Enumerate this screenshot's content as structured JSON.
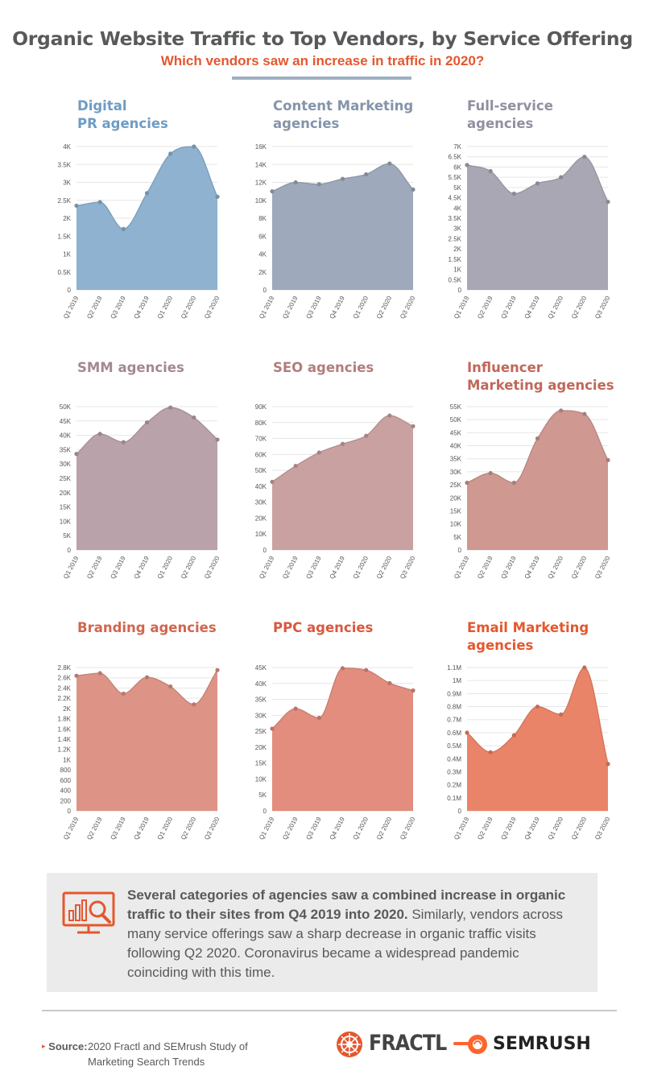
{
  "header": {
    "title": "Organic Website Traffic to Top Vendors, by Service Offering",
    "subtitle": "Which vendors saw an increase in traffic in 2020?"
  },
  "colors": {
    "accent": "#e4572e",
    "title_gray": "#58595b",
    "rule_blue": "#9fb0c2",
    "callout_bg": "#ebebeb"
  },
  "chart_data": [
    {
      "type": "area",
      "title": "Digital\nPR agencies",
      "color": "#8eb2cf",
      "title_color": "#6e9cc4",
      "categories": [
        "Q1 2019",
        "Q2 2019",
        "Q3 2019",
        "Q4 2019",
        "Q1 2020",
        "Q2 2020",
        "Q3 2020"
      ],
      "values": [
        2350,
        2450,
        1700,
        2700,
        3800,
        4000,
        2600
      ],
      "ylim": [
        0,
        4000
      ],
      "yticks": [
        0,
        500,
        1000,
        1500,
        2000,
        2500,
        3000,
        3500,
        4000
      ],
      "ytick_labels": [
        "0",
        "0.5K",
        "1K",
        "1.5K",
        "2K",
        "2.5K",
        "3K",
        "3.5K",
        "4K"
      ]
    },
    {
      "type": "area",
      "title": "Content Marketing\nagencies",
      "color": "#9eaabb",
      "title_color": "#8494aa",
      "categories": [
        "Q1 2019",
        "Q2 2019",
        "Q3 2019",
        "Q4 2019",
        "Q1 2020",
        "Q2 2020",
        "Q3 2020"
      ],
      "values": [
        11000,
        12000,
        11800,
        12400,
        12900,
        14100,
        11200
      ],
      "ylim": [
        0,
        16000
      ],
      "yticks": [
        0,
        2000,
        4000,
        6000,
        8000,
        10000,
        12000,
        14000,
        16000
      ],
      "ytick_labels": [
        "0",
        "2K",
        "4K",
        "6K",
        "8K",
        "10K",
        "12K",
        "14K",
        "16K"
      ]
    },
    {
      "type": "area",
      "title": "Full-service\nagencies",
      "color": "#aaa7b4",
      "title_color": "#928fa0",
      "categories": [
        "Q1 2019",
        "Q2 2019",
        "Q3 2019",
        "Q4 2019",
        "Q1 2020",
        "Q2 2020",
        "Q3 2020"
      ],
      "values": [
        6100,
        5800,
        4700,
        5200,
        5500,
        6500,
        4300
      ],
      "ylim": [
        0,
        7000
      ],
      "yticks": [
        0,
        500,
        1000,
        1500,
        2000,
        2500,
        3000,
        3500,
        4000,
        4500,
        5000,
        5500,
        6000,
        6500,
        7000
      ],
      "ytick_labels": [
        "0",
        "0.5K",
        "1K",
        "1.5K",
        "2K",
        "2.5K",
        "3K",
        "3.5K",
        "4K",
        "4.5K",
        "5K",
        "5.5K",
        "6K",
        "6.5K",
        "7K"
      ]
    },
    {
      "type": "area",
      "title": "SMM agencies",
      "color": "#b9a2aa",
      "title_color": "#a48891",
      "categories": [
        "Q1 2019",
        "Q2 2019",
        "Q3 2019",
        "Q4 2019",
        "Q1 2020",
        "Q2 2020",
        "Q3 2020"
      ],
      "values": [
        33500,
        40500,
        37600,
        44500,
        49700,
        46200,
        38500
      ],
      "ylim": [
        0,
        50000
      ],
      "yticks": [
        0,
        5000,
        10000,
        15000,
        20000,
        25000,
        30000,
        35000,
        40000,
        45000,
        50000
      ],
      "ytick_labels": [
        "0",
        "5K",
        "10K",
        "15K",
        "20K",
        "25K",
        "30K",
        "35K",
        "40K",
        "45K",
        "50K"
      ]
    },
    {
      "type": "area",
      "title": "SEO agencies",
      "color": "#c9a1a0",
      "title_color": "#b27d7c",
      "categories": [
        "Q1 2019",
        "Q2 2019",
        "Q3 2019",
        "Q4 2019",
        "Q1 2020",
        "Q2 2020",
        "Q3 2020"
      ],
      "values": [
        42800,
        52800,
        61200,
        66600,
        71700,
        84400,
        77700
      ],
      "ylim": [
        0,
        90000
      ],
      "yticks": [
        0,
        10000,
        20000,
        30000,
        40000,
        50000,
        60000,
        70000,
        80000,
        90000
      ],
      "ytick_labels": [
        "0",
        "10K",
        "20K",
        "30K",
        "40K",
        "50K",
        "60K",
        "70K",
        "80K",
        "90K"
      ]
    },
    {
      "type": "area",
      "title": "Influencer\nMarketing agencies",
      "color": "#cf9891",
      "title_color": "#c0685a",
      "categories": [
        "Q1 2019",
        "Q2 2019",
        "Q3 2019",
        "Q4 2019",
        "Q1 2020",
        "Q2 2020",
        "Q3 2020"
      ],
      "values": [
        25800,
        29500,
        25800,
        42800,
        53500,
        52200,
        34500
      ],
      "ylim": [
        0,
        55000
      ],
      "yticks": [
        0,
        5000,
        10000,
        15000,
        20000,
        25000,
        30000,
        35000,
        40000,
        45000,
        50000,
        55000
      ],
      "ytick_labels": [
        "0",
        "5K",
        "10K",
        "15K",
        "20K",
        "25K",
        "30K",
        "35K",
        "40K",
        "45K",
        "50K",
        "55K"
      ]
    },
    {
      "type": "area",
      "title": "Branding agencies",
      "color": "#de9387",
      "title_color": "#d2654f",
      "categories": [
        "Q1 2019",
        "Q2 2019",
        "Q3 2019",
        "Q4 2019",
        "Q1 2020",
        "Q2 2020",
        "Q3 2020"
      ],
      "values": [
        2640,
        2690,
        2290,
        2610,
        2430,
        2080,
        2750
      ],
      "ylim": [
        0,
        2800
      ],
      "yticks": [
        0,
        200,
        400,
        600,
        800,
        1000,
        1200,
        1400,
        1600,
        1800,
        2000,
        2200,
        2400,
        2600,
        2800
      ],
      "ytick_labels": [
        "0",
        "200",
        "400",
        "600",
        "800",
        "1K",
        "1.2K",
        "1.4K",
        "1.6K",
        "1.8K",
        "2K",
        "2.2K",
        "2.4K",
        "2.6K",
        "2.8K"
      ]
    },
    {
      "type": "area",
      "title": "PPC agencies",
      "color": "#e28d7d",
      "title_color": "#d9583f",
      "categories": [
        "Q1 2019",
        "Q2 2019",
        "Q3 2019",
        "Q4 2019",
        "Q1 2020",
        "Q2 2020",
        "Q3 2020"
      ],
      "values": [
        25800,
        32100,
        29200,
        44800,
        44200,
        40100,
        37800
      ],
      "ylim": [
        0,
        45000
      ],
      "yticks": [
        0,
        5000,
        10000,
        15000,
        20000,
        25000,
        30000,
        35000,
        40000,
        45000
      ],
      "ytick_labels": [
        "0",
        "5K",
        "10K",
        "15K",
        "20K",
        "25K",
        "30K",
        "35K",
        "40K",
        "45K"
      ]
    },
    {
      "type": "area",
      "title": "Email Marketing\nagencies",
      "color": "#ea8468",
      "title_color": "#e4572e",
      "categories": [
        "Q1 2019",
        "Q2 2019",
        "Q3 2019",
        "Q4 2019",
        "Q1 2020",
        "Q2 2020",
        "Q3 2020"
      ],
      "values": [
        600000,
        450000,
        580000,
        800000,
        740000,
        1100000,
        360000
      ],
      "ylim": [
        0,
        1100000
      ],
      "yticks": [
        0,
        100000,
        200000,
        300000,
        400000,
        500000,
        600000,
        700000,
        800000,
        900000,
        1000000,
        1100000
      ],
      "ytick_labels": [
        "0",
        "0.1M",
        "0.2M",
        "0.3M",
        "0.4M",
        "0.5M",
        "0.6M",
        "0.7M",
        "0.8M",
        "0.9M",
        "1M",
        "1.1M"
      ]
    }
  ],
  "callout": {
    "bold": "Several categories of agencies saw a combined increase in organic traffic to their sites from Q4 2019 into 2020.",
    "rest": " Similarly, vendors across many service offerings saw a sharp decrease in organic traffic visits following Q2 2020. Coronavirus became a widespread pandemic coinciding with this time.",
    "icon": "analytics-monitor-icon"
  },
  "footer": {
    "source_label": "Source:",
    "source_text": "2020 Fractl and SEMrush Study of Marketing Search Trends",
    "fractl_logo": "FRACTL",
    "semrush_logo": "SEMRUSH"
  }
}
